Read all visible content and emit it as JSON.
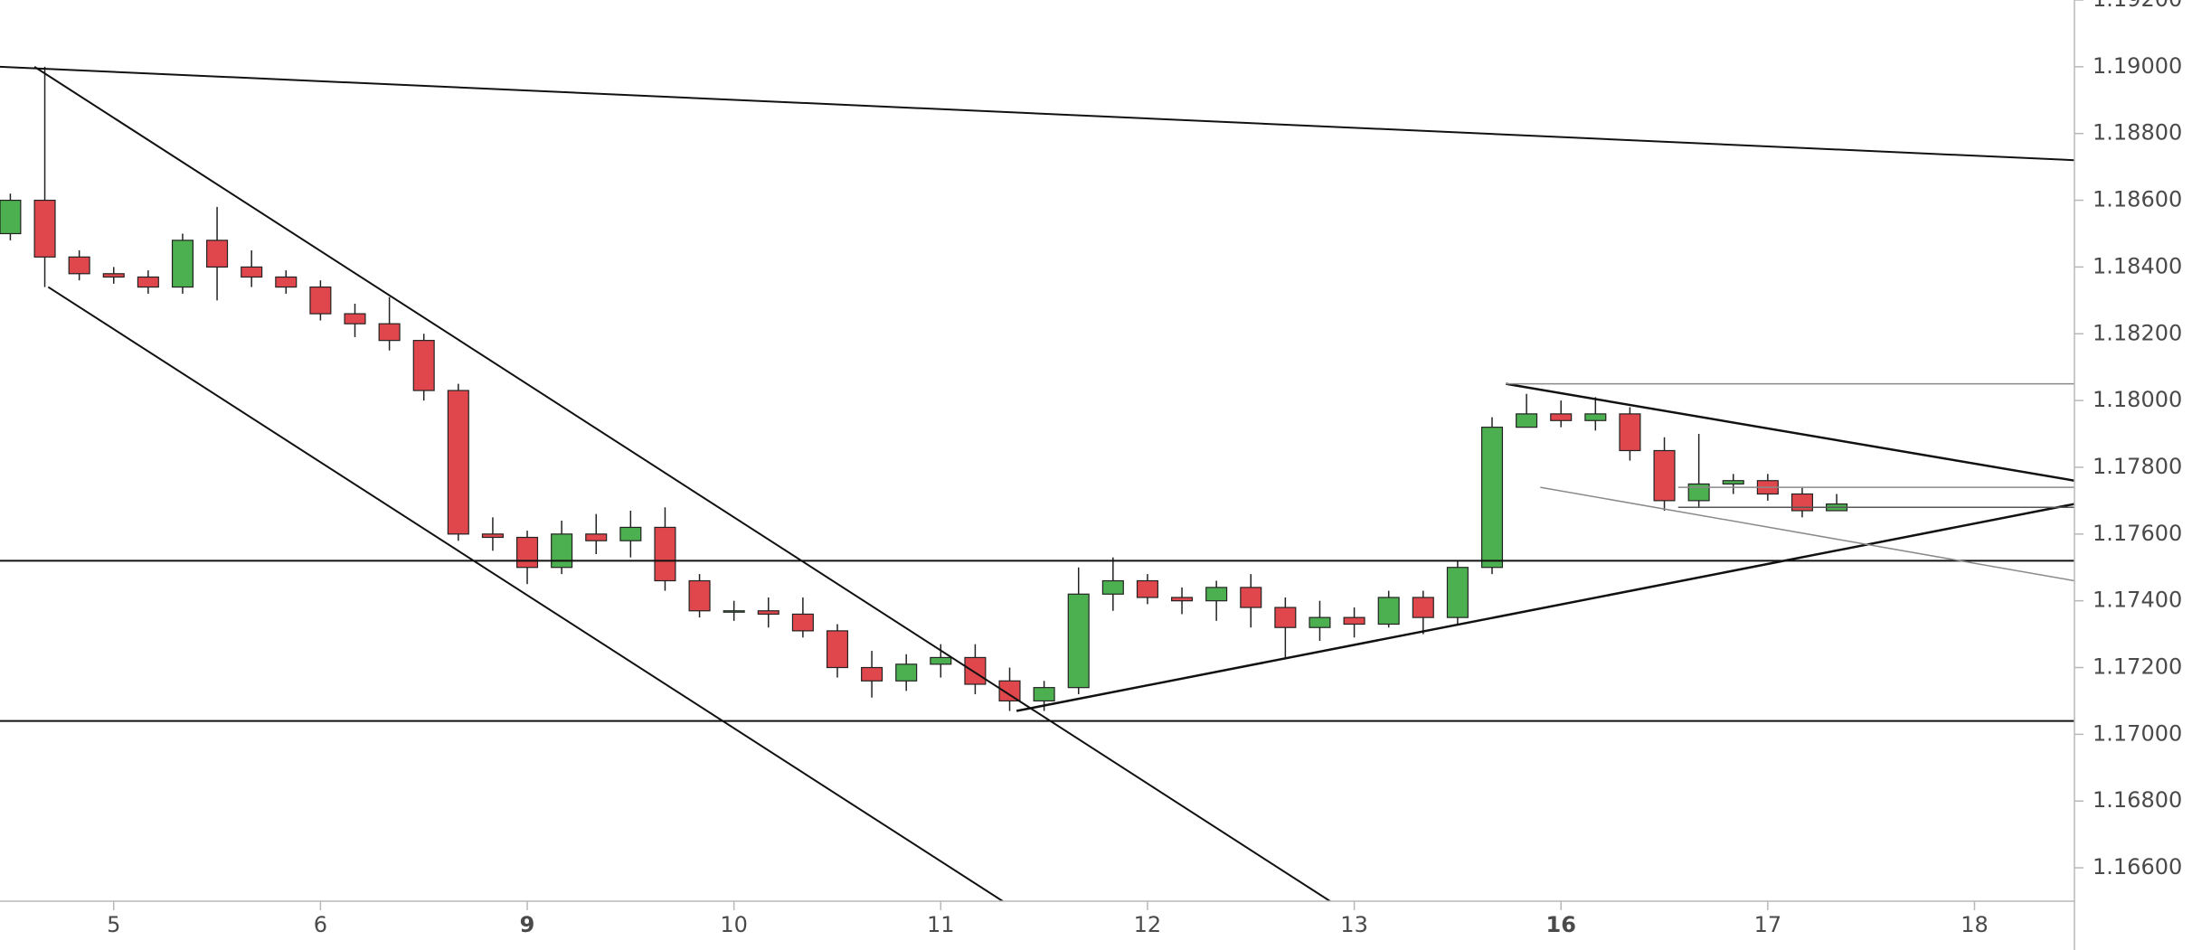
{
  "chart_data": {
    "type": "candlestick",
    "x": [
      -3,
      -2,
      -1,
      0,
      1,
      2,
      3,
      4,
      5,
      6,
      7,
      8,
      9,
      10,
      11,
      12,
      13,
      14,
      15,
      16,
      17,
      18,
      19,
      20,
      21,
      22,
      23,
      24,
      25,
      26,
      27,
      28,
      29,
      30,
      31,
      32,
      33,
      34,
      35,
      36,
      37,
      38,
      39,
      40,
      41,
      42,
      43,
      44,
      45,
      46,
      47,
      48,
      49,
      50
    ],
    "open": [
      1.185,
      1.186,
      1.1843,
      1.1838,
      1.1837,
      1.1834,
      1.1848,
      1.184,
      1.1837,
      1.1834,
      1.1826,
      1.1823,
      1.1818,
      1.1803,
      1.176,
      1.1759,
      1.175,
      1.176,
      1.1758,
      1.1762,
      1.1746,
      1.1737,
      1.1737,
      1.1736,
      1.1731,
      1.172,
      1.1716,
      1.1721,
      1.1723,
      1.1716,
      1.171,
      1.1714,
      1.1742,
      1.1746,
      1.1741,
      1.174,
      1.1744,
      1.1738,
      1.1732,
      1.1735,
      1.1733,
      1.1741,
      1.1735,
      1.175,
      1.1792,
      1.1796,
      1.1794,
      1.1796,
      1.1785,
      1.177,
      1.1775,
      1.1776,
      1.1772,
      1.1767
    ],
    "high": [
      1.1862,
      1.19,
      1.1845,
      1.184,
      1.1839,
      1.185,
      1.1858,
      1.1845,
      1.1839,
      1.1836,
      1.1829,
      1.1831,
      1.182,
      1.1805,
      1.1765,
      1.1761,
      1.1764,
      1.1766,
      1.1767,
      1.1768,
      1.1748,
      1.174,
      1.1741,
      1.1741,
      1.1733,
      1.1725,
      1.1724,
      1.1727,
      1.1727,
      1.172,
      1.1716,
      1.175,
      1.1753,
      1.1748,
      1.1744,
      1.1746,
      1.1748,
      1.1741,
      1.174,
      1.1738,
      1.1743,
      1.1743,
      1.1752,
      1.1795,
      1.1802,
      1.18,
      1.1801,
      1.1798,
      1.1789,
      1.179,
      1.1778,
      1.1778,
      1.1774,
      1.1772
    ],
    "low": [
      1.1848,
      1.1834,
      1.1836,
      1.1835,
      1.1832,
      1.1832,
      1.183,
      1.1834,
      1.1832,
      1.1824,
      1.1819,
      1.1815,
      1.18,
      1.1758,
      1.1755,
      1.1745,
      1.1748,
      1.1754,
      1.1753,
      1.1743,
      1.1735,
      1.1734,
      1.1732,
      1.1729,
      1.1717,
      1.1711,
      1.1713,
      1.1717,
      1.1712,
      1.1707,
      1.1707,
      1.1712,
      1.1737,
      1.1739,
      1.1736,
      1.1734,
      1.1732,
      1.1723,
      1.1728,
      1.1729,
      1.1732,
      1.173,
      1.1733,
      1.1748,
      1.1792,
      1.1792,
      1.1791,
      1.1782,
      1.1767,
      1.1768,
      1.1772,
      1.177,
      1.1765,
      1.1767
    ],
    "close": [
      1.186,
      1.1843,
      1.1838,
      1.1837,
      1.1834,
      1.1848,
      1.184,
      1.1837,
      1.1834,
      1.1826,
      1.1823,
      1.1818,
      1.1803,
      1.176,
      1.1759,
      1.175,
      1.176,
      1.1758,
      1.1762,
      1.1746,
      1.1737,
      1.1737,
      1.1736,
      1.1731,
      1.172,
      1.1716,
      1.1721,
      1.1723,
      1.1715,
      1.171,
      1.1714,
      1.1742,
      1.1746,
      1.1741,
      1.174,
      1.1744,
      1.1738,
      1.1732,
      1.1735,
      1.1733,
      1.1741,
      1.1735,
      1.175,
      1.1792,
      1.1796,
      1.1794,
      1.1796,
      1.1785,
      1.177,
      1.1775,
      1.1776,
      1.1772,
      1.1767,
      1.1769
    ],
    "up_color": "#4caf50",
    "down_color": "#e0474c",
    "xlim": [
      -3.3,
      56.9
    ],
    "ylim": [
      1.165,
      1.192
    ],
    "xticks": [
      {
        "value": 0,
        "label": "5"
      },
      {
        "value": 6,
        "label": "6"
      },
      {
        "value": 12,
        "label": "9",
        "bold": true
      },
      {
        "value": 18,
        "label": "10"
      },
      {
        "value": 24,
        "label": "11"
      },
      {
        "value": 30,
        "label": "12"
      },
      {
        "value": 36,
        "label": "13"
      },
      {
        "value": 42,
        "label": "16",
        "bold": true
      },
      {
        "value": 48,
        "label": "17"
      },
      {
        "value": 54,
        "label": "18"
      }
    ],
    "yticks": [
      {
        "value": 1.166,
        "label": "1.16600"
      },
      {
        "value": 1.168,
        "label": "1.16800"
      },
      {
        "value": 1.17,
        "label": "1.17000"
      },
      {
        "value": 1.172,
        "label": "1.17200"
      },
      {
        "value": 1.174,
        "label": "1.17400"
      },
      {
        "value": 1.176,
        "label": "1.17600"
      },
      {
        "value": 1.178,
        "label": "1.17800"
      },
      {
        "value": 1.18,
        "label": "1.18000"
      },
      {
        "value": 1.182,
        "label": "1.18200"
      },
      {
        "value": 1.184,
        "label": "1.18400"
      },
      {
        "value": 1.186,
        "label": "1.18600"
      },
      {
        "value": 1.188,
        "label": "1.18800"
      },
      {
        "value": 1.19,
        "label": "1.19000"
      },
      {
        "value": 1.192,
        "label": "1.19200"
      }
    ],
    "drawings": [
      {
        "x": [
          -3.3,
          56.9
        ],
        "y": [
          1.19,
          1.1872
        ],
        "color": "#111111",
        "width": 2
      },
      {
        "x": [
          -2.3,
          35.3
        ],
        "y": [
          1.19,
          1.165
        ],
        "color": "#111111",
        "width": 2
      },
      {
        "x": [
          -1.9,
          25.8
        ],
        "y": [
          1.1834,
          1.165
        ],
        "color": "#111111",
        "width": 2
      },
      {
        "x": [
          -3.3,
          56.9
        ],
        "y": [
          1.1752,
          1.1752
        ],
        "color": "#111111",
        "width": 2
      },
      {
        "x": [
          -3.3,
          56.9
        ],
        "y": [
          1.1704,
          1.1704
        ],
        "color": "#111111",
        "width": 2
      },
      {
        "x": [
          26.2,
          56.9
        ],
        "y": [
          1.1707,
          1.1769
        ],
        "color": "#111111",
        "width": 2.5
      },
      {
        "x": [
          40.4,
          56.9
        ],
        "y": [
          1.1805,
          1.1776
        ],
        "color": "#111111",
        "width": 2.5
      },
      {
        "x": [
          40.4,
          56.9
        ],
        "y": [
          1.1805,
          1.1805
        ],
        "color": "#8a8a8a",
        "width": 1.5
      },
      {
        "x": [
          41.4,
          56.9
        ],
        "y": [
          1.1774,
          1.1746
        ],
        "color": "#8a8a8a",
        "width": 1.5
      },
      {
        "x": [
          45.4,
          56.9
        ],
        "y": [
          1.1774,
          1.1774
        ],
        "color": "#8a8a8a",
        "width": 1.5
      },
      {
        "x": [
          45.4,
          56.9
        ],
        "y": [
          1.1768,
          1.1768
        ],
        "color": "#555555",
        "width": 1.5
      }
    ]
  }
}
